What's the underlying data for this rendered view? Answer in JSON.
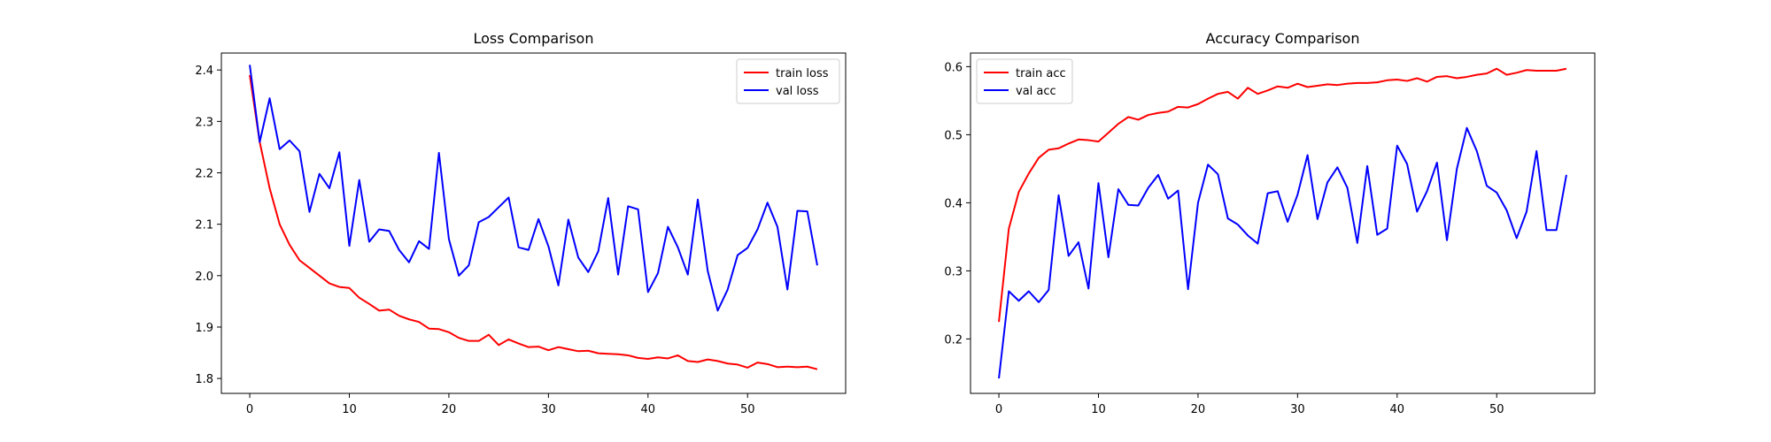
{
  "colors": {
    "train": "#ff0000",
    "val": "#0000ff",
    "axis": "#000000",
    "background": "#ffffff"
  },
  "chart_data": [
    {
      "type": "line",
      "title": "Loss Comparison",
      "xlabel": "",
      "ylabel": "",
      "xlim": [
        -2.85,
        59.85
      ],
      "ylim": [
        1.771,
        2.433
      ],
      "xticks": [
        0,
        10,
        20,
        30,
        40,
        50
      ],
      "yticks": [
        1.8,
        1.9,
        2.0,
        2.1,
        2.2,
        2.3,
        2.4
      ],
      "tick_labels_x": [
        "0",
        "10",
        "20",
        "30",
        "40",
        "50"
      ],
      "tick_labels_y": [
        "1.8",
        "1.9",
        "2.0",
        "2.1",
        "2.2",
        "2.3",
        "2.4"
      ],
      "grid": false,
      "legend_position": "top-right",
      "x": [
        0,
        1,
        2,
        3,
        4,
        5,
        6,
        7,
        8,
        9,
        10,
        11,
        12,
        13,
        14,
        15,
        16,
        17,
        18,
        19,
        20,
        21,
        22,
        23,
        24,
        25,
        26,
        27,
        28,
        29,
        30,
        31,
        32,
        33,
        34,
        35,
        36,
        37,
        38,
        39,
        40,
        41,
        42,
        43,
        44,
        45,
        46,
        47,
        48,
        49,
        50,
        51,
        52,
        53,
        54,
        55,
        56,
        57
      ],
      "series": [
        {
          "name": "train loss",
          "color": "#ff0000",
          "values": [
            2.39,
            2.26,
            2.17,
            2.1,
            2.06,
            2.03,
            2.015,
            2.0,
            1.985,
            1.978,
            1.976,
            1.957,
            1.945,
            1.932,
            1.934,
            1.922,
            1.915,
            1.91,
            1.897,
            1.896,
            1.89,
            1.879,
            1.873,
            1.873,
            1.885,
            1.865,
            1.876,
            1.868,
            1.861,
            1.862,
            1.855,
            1.861,
            1.857,
            1.853,
            1.854,
            1.849,
            1.848,
            1.847,
            1.845,
            1.84,
            1.838,
            1.841,
            1.839,
            1.845,
            1.834,
            1.832,
            1.837,
            1.834,
            1.829,
            1.827,
            1.821,
            1.831,
            1.828,
            1.822,
            1.823,
            1.822,
            1.823,
            1.818
          ]
        },
        {
          "name": "val loss",
          "color": "#0000ff",
          "values": [
            2.41,
            2.26,
            2.345,
            2.246,
            2.263,
            2.242,
            2.124,
            2.198,
            2.17,
            2.24,
            2.058,
            2.186,
            2.066,
            2.09,
            2.087,
            2.05,
            2.026,
            2.067,
            2.052,
            2.239,
            2.071,
            2.0,
            2.02,
            2.104,
            2.114,
            2.133,
            2.152,
            2.055,
            2.05,
            2.11,
            2.057,
            1.981,
            2.109,
            2.035,
            2.007,
            2.047,
            2.151,
            2.002,
            2.135,
            2.129,
            1.968,
            2.005,
            2.095,
            2.055,
            2.002,
            2.148,
            2.009,
            1.932,
            1.973,
            2.04,
            2.054,
            2.09,
            2.142,
            2.095,
            1.973,
            2.126,
            2.125,
            2.02
          ]
        }
      ]
    },
    {
      "type": "line",
      "title": "Accuracy Comparison",
      "xlabel": "",
      "ylabel": "",
      "xlim": [
        -2.85,
        59.85
      ],
      "ylim": [
        0.12,
        0.62
      ],
      "xticks": [
        0,
        10,
        20,
        30,
        40,
        50
      ],
      "yticks": [
        0.2,
        0.3,
        0.4,
        0.5,
        0.6
      ],
      "tick_labels_x": [
        "0",
        "10",
        "20",
        "30",
        "40",
        "50"
      ],
      "tick_labels_y": [
        "0.2",
        "0.3",
        "0.4",
        "0.5",
        "0.6"
      ],
      "grid": false,
      "legend_position": "top-left",
      "x": [
        0,
        1,
        2,
        3,
        4,
        5,
        6,
        7,
        8,
        9,
        10,
        11,
        12,
        13,
        14,
        15,
        16,
        17,
        18,
        19,
        20,
        21,
        22,
        23,
        24,
        25,
        26,
        27,
        28,
        29,
        30,
        31,
        32,
        33,
        34,
        35,
        36,
        37,
        38,
        39,
        40,
        41,
        42,
        43,
        44,
        45,
        46,
        47,
        48,
        49,
        50,
        51,
        52,
        53,
        54,
        55,
        56,
        57
      ],
      "series": [
        {
          "name": "train acc",
          "color": "#ff0000",
          "values": [
            0.225,
            0.362,
            0.416,
            0.443,
            0.466,
            0.478,
            0.48,
            0.487,
            0.493,
            0.492,
            0.49,
            0.503,
            0.516,
            0.526,
            0.522,
            0.529,
            0.532,
            0.534,
            0.541,
            0.54,
            0.545,
            0.553,
            0.56,
            0.563,
            0.553,
            0.569,
            0.56,
            0.565,
            0.571,
            0.569,
            0.575,
            0.57,
            0.572,
            0.574,
            0.573,
            0.575,
            0.576,
            0.576,
            0.577,
            0.58,
            0.581,
            0.579,
            0.583,
            0.578,
            0.585,
            0.586,
            0.583,
            0.585,
            0.588,
            0.59,
            0.597,
            0.588,
            0.591,
            0.595,
            0.594,
            0.594,
            0.594,
            0.597
          ]
        },
        {
          "name": "val acc",
          "color": "#0000ff",
          "values": [
            0.142,
            0.27,
            0.256,
            0.27,
            0.254,
            0.272,
            0.411,
            0.322,
            0.342,
            0.274,
            0.429,
            0.32,
            0.42,
            0.397,
            0.396,
            0.422,
            0.441,
            0.406,
            0.418,
            0.273,
            0.4,
            0.456,
            0.442,
            0.377,
            0.368,
            0.352,
            0.34,
            0.414,
            0.417,
            0.372,
            0.412,
            0.47,
            0.376,
            0.43,
            0.452,
            0.422,
            0.341,
            0.454,
            0.353,
            0.362,
            0.484,
            0.457,
            0.387,
            0.417,
            0.459,
            0.345,
            0.45,
            0.51,
            0.476,
            0.425,
            0.415,
            0.389,
            0.348,
            0.387,
            0.476,
            0.36,
            0.36,
            0.441
          ]
        }
      ]
    }
  ]
}
